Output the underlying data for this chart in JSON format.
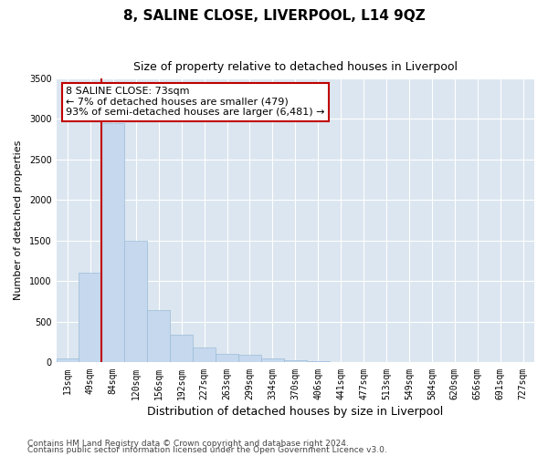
{
  "title": "8, SALINE CLOSE, LIVERPOOL, L14 9QZ",
  "subtitle": "Size of property relative to detached houses in Liverpool",
  "xlabel": "Distribution of detached houses by size in Liverpool",
  "ylabel": "Number of detached properties",
  "bins": [
    "13sqm",
    "49sqm",
    "84sqm",
    "120sqm",
    "156sqm",
    "192sqm",
    "227sqm",
    "263sqm",
    "299sqm",
    "334sqm",
    "370sqm",
    "406sqm",
    "441sqm",
    "477sqm",
    "513sqm",
    "549sqm",
    "584sqm",
    "620sqm",
    "656sqm",
    "691sqm",
    "727sqm"
  ],
  "values": [
    55,
    1110,
    2950,
    1500,
    640,
    340,
    185,
    105,
    90,
    45,
    25,
    18,
    8,
    6,
    4,
    2,
    2,
    1,
    0,
    0,
    0
  ],
  "bar_color": "#c5d8ed",
  "bar_edgecolor": "#9bbcd8",
  "marker_line_color": "#c00000",
  "annotation_text": "8 SALINE CLOSE: 73sqm\n← 7% of detached houses are smaller (479)\n93% of semi-detached houses are larger (6,481) →",
  "annotation_box_color": "#ffffff",
  "annotation_box_edgecolor": "#c00000",
  "ylim": [
    0,
    3500
  ],
  "yticks": [
    0,
    500,
    1000,
    1500,
    2000,
    2500,
    3000,
    3500
  ],
  "plot_background": "#dce6f0",
  "footer_line1": "Contains HM Land Registry data © Crown copyright and database right 2024.",
  "footer_line2": "Contains public sector information licensed under the Open Government Licence v3.0.",
  "title_fontsize": 11,
  "subtitle_fontsize": 9,
  "xlabel_fontsize": 9,
  "ylabel_fontsize": 8,
  "tick_fontsize": 7,
  "footer_fontsize": 6.5
}
